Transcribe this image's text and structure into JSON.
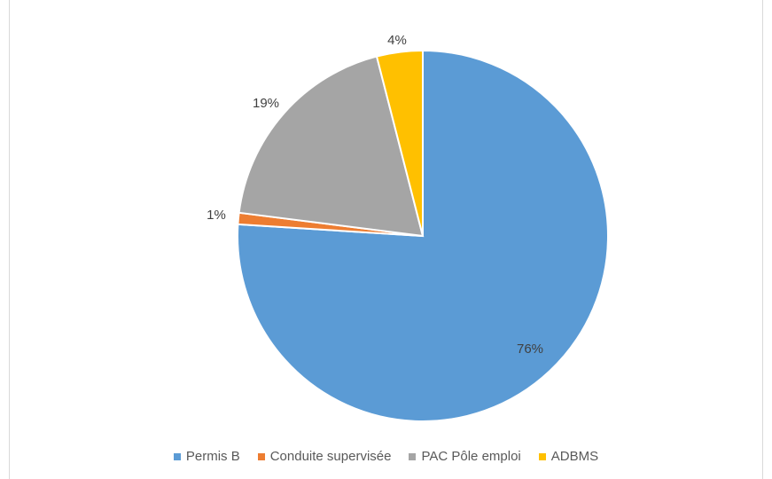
{
  "chart_data": {
    "type": "pie",
    "title": "",
    "legend_position": "bottom",
    "slices": [
      {
        "name": "Permis B",
        "value": 76,
        "label": "76%",
        "color": "#5B9BD5"
      },
      {
        "name": "Conduite supervisée",
        "value": 1,
        "label": "1%",
        "color": "#ED7D31"
      },
      {
        "name": "PAC Pôle emploi",
        "value": 19,
        "label": "19%",
        "color": "#A5A5A5"
      },
      {
        "name": "ADBMS",
        "value": 4,
        "label": "4%",
        "color": "#FFC000"
      }
    ]
  }
}
